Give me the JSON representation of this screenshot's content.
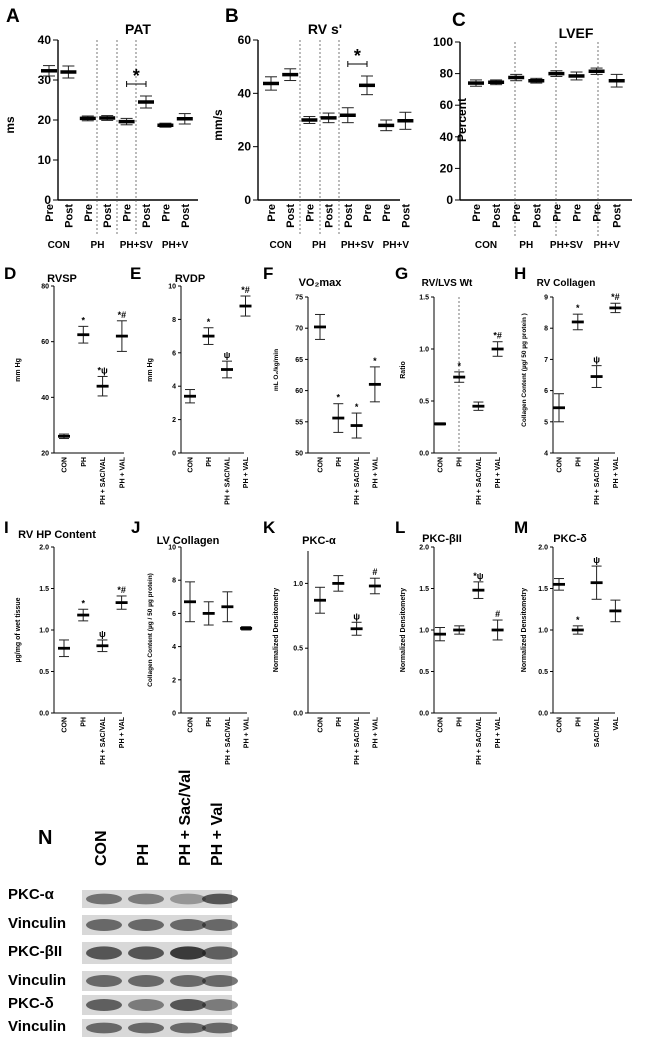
{
  "chart_data": [
    {
      "panel": "A",
      "type": "scatter",
      "title": "PAT",
      "ylabel": "ms",
      "ylim": [
        0,
        40
      ],
      "yticks": [
        0,
        10,
        20,
        30,
        40
      ],
      "group_labels": [
        "CON",
        "PH",
        "PH+SV",
        "PH+V"
      ],
      "categories": [
        "Pre",
        "Post",
        "Pre",
        "Post",
        "Pre",
        "Post",
        "Pre",
        "Post"
      ],
      "values": [
        32.3,
        32.0,
        20.4,
        20.5,
        19.6,
        24.5,
        18.7,
        20.3
      ],
      "errors": [
        1.3,
        1.5,
        0.6,
        0.6,
        0.8,
        1.5,
        0.5,
        1.3
      ],
      "annotations": [
        {
          "bracket": [
            4,
            5
          ],
          "text": "*"
        }
      ]
    },
    {
      "panel": "B",
      "type": "scatter",
      "title": "RV s'",
      "ylabel": "mm/s",
      "ylim": [
        0,
        60
      ],
      "yticks": [
        0,
        20,
        40,
        60
      ],
      "group_labels": [
        "CON",
        "PH",
        "PH+SV",
        "PH+V"
      ],
      "categories": [
        "Pre",
        "Post",
        "Pre",
        "Post",
        "Post",
        "Pre",
        "Pre",
        "Post"
      ],
      "values": [
        43.7,
        47.0,
        30.0,
        30.8,
        31.8,
        43.0,
        28.0,
        29.7
      ],
      "errors": [
        2.5,
        2.2,
        1.3,
        1.8,
        2.8,
        3.5,
        2.0,
        3.2
      ],
      "annotations": [
        {
          "bracket": [
            4,
            5
          ],
          "text": "*"
        }
      ]
    },
    {
      "panel": "C",
      "type": "scatter",
      "title": "LVEF",
      "ylabel": "Percent",
      "ylim": [
        0,
        100
      ],
      "yticks": [
        0,
        20,
        40,
        60,
        80,
        100
      ],
      "group_labels": [
        "CON",
        "PH",
        "PH+SV",
        "PH+V"
      ],
      "categories": [
        "Pre",
        "Post",
        "Pre",
        "Post",
        "Pre",
        "Pre",
        "Pre",
        "Post"
      ],
      "values": [
        74,
        74.5,
        77.5,
        75.5,
        80,
        78.5,
        81.5,
        75.5
      ],
      "errors": [
        2,
        1.5,
        2,
        1.5,
        1.8,
        2.5,
        2,
        4
      ],
      "annotations": []
    },
    {
      "panel": "D",
      "type": "scatter",
      "title": "RVSP",
      "ylabel": "mm Hg",
      "ylim": [
        20,
        80
      ],
      "yticks": [
        20,
        40,
        60,
        80
      ],
      "categories": [
        "CON",
        "PH",
        "PH + SAC/VAL",
        "PH + VAL"
      ],
      "values": [
        26,
        62.5,
        44,
        62
      ],
      "errors": [
        0.8,
        3,
        3.5,
        5.5
      ],
      "marks": [
        "",
        "*",
        "*ψ",
        "*#"
      ]
    },
    {
      "panel": "E",
      "type": "scatter",
      "title": "RVDP",
      "ylabel": "mm Hg",
      "ylim": [
        0,
        10
      ],
      "yticks": [
        0,
        2,
        4,
        6,
        8,
        10
      ],
      "categories": [
        "CON",
        "PH",
        "PH + SAC/VAL",
        "PH + VAL"
      ],
      "values": [
        3.4,
        7.0,
        5.0,
        8.8
      ],
      "errors": [
        0.4,
        0.5,
        0.5,
        0.6
      ],
      "marks": [
        "",
        "*",
        "ψ",
        "*#"
      ]
    },
    {
      "panel": "F",
      "type": "scatter",
      "title": "VO₂max",
      "ylabel": "mL O₂/kg/min",
      "ylim": [
        50,
        75
      ],
      "yticks": [
        50,
        55,
        60,
        65,
        70,
        75
      ],
      "categories": [
        "CON",
        "PH",
        "PH + SAC/VAL",
        "PH + VAL"
      ],
      "values": [
        70.2,
        55.6,
        54.4,
        61.0
      ],
      "errors": [
        2.0,
        2.3,
        2.0,
        2.8
      ],
      "marks": [
        "",
        "*",
        "*",
        "*"
      ]
    },
    {
      "panel": "G",
      "type": "scatter",
      "title": "RV/LVS Wt",
      "ylabel": "Ratio",
      "ylim": [
        0,
        1.5
      ],
      "yticks": [
        0.0,
        0.5,
        1.0,
        1.5
      ],
      "categories": [
        "CON",
        "PH",
        "PH + SAC/VAL",
        "PH + VAL"
      ],
      "values": [
        0.28,
        0.73,
        0.45,
        1.0
      ],
      "errors": [
        0.01,
        0.05,
        0.04,
        0.07
      ],
      "marks": [
        "",
        "*",
        "",
        "*#"
      ]
    },
    {
      "panel": "H",
      "type": "scatter",
      "title": "RV Collagen",
      "ylabel": "Collagen Content (µg/ 50 µg protein )",
      "ylim": [
        4,
        9
      ],
      "yticks": [
        4,
        5,
        6,
        7,
        8,
        9
      ],
      "categories": [
        "CON",
        "PH",
        "PH + SAC/VAL",
        "PH + VAL"
      ],
      "values": [
        5.45,
        8.2,
        6.45,
        8.65
      ],
      "errors": [
        0.45,
        0.25,
        0.35,
        0.15
      ],
      "marks": [
        "",
        "*",
        "ψ",
        "*#"
      ]
    },
    {
      "panel": "I",
      "type": "scatter",
      "title": "RV HP Content",
      "ylabel": "µg/mg of wet tissue",
      "ylim": [
        0,
        2
      ],
      "yticks": [
        0.0,
        0.5,
        1.0,
        1.5,
        2.0
      ],
      "categories": [
        "CON",
        "PH",
        "PH + SAC/VAL",
        "PH + VAL"
      ],
      "values": [
        0.78,
        1.18,
        0.81,
        1.33
      ],
      "errors": [
        0.1,
        0.07,
        0.07,
        0.08
      ],
      "marks": [
        "",
        "*",
        "ψ",
        "*#"
      ]
    },
    {
      "panel": "J",
      "type": "scatter",
      "title": "LV Collagen",
      "ylabel": "Collagen Content (µg / 50 µg protein)",
      "ylim": [
        0,
        10
      ],
      "yticks": [
        0,
        2,
        4,
        6,
        8,
        10
      ],
      "categories": [
        "CON",
        "PH",
        "PH + SAC/VAL",
        "PH + VAL"
      ],
      "values": [
        6.7,
        6.0,
        6.4,
        5.1
      ],
      "errors": [
        1.2,
        0.7,
        0.9,
        0.1
      ],
      "marks": [
        "",
        "",
        "",
        ""
      ]
    },
    {
      "panel": "K",
      "type": "scatter",
      "title": "PKC-α",
      "ylabel": "Normalized Densitometry",
      "ylim": [
        0,
        1.25
      ],
      "yticks": [
        0.0,
        0.5,
        1.0
      ],
      "categories": [
        "CON",
        "PH",
        "PH + SAC/VAL",
        "PH + VAL"
      ],
      "values": [
        0.87,
        1.0,
        0.65,
        0.98
      ],
      "errors": [
        0.1,
        0.06,
        0.05,
        0.06
      ],
      "marks": [
        "",
        "",
        "ψ",
        "#"
      ]
    },
    {
      "panel": "L",
      "type": "scatter",
      "title": "PKC-βII",
      "ylabel": "Normalized Densitometry",
      "ylim": [
        0,
        2
      ],
      "yticks": [
        0.0,
        0.5,
        1.0,
        1.5,
        2.0
      ],
      "categories": [
        "CON",
        "PH",
        "PH + SAC/VAL",
        "PH + VAL"
      ],
      "values": [
        0.95,
        1.0,
        1.48,
        1.0
      ],
      "errors": [
        0.08,
        0.05,
        0.1,
        0.12
      ],
      "marks": [
        "",
        "",
        "*ψ",
        "#"
      ]
    },
    {
      "panel": "M",
      "type": "scatter",
      "title": "PKC-δ",
      "ylabel": "Normalized Densitometry",
      "ylim": [
        0,
        2
      ],
      "yticks": [
        0.0,
        0.5,
        1.0,
        1.5,
        2.0
      ],
      "categories": [
        "CON",
        "PH",
        "SAC/VAL",
        "VAL"
      ],
      "values": [
        1.55,
        1.0,
        1.57,
        1.23
      ],
      "errors": [
        0.07,
        0.05,
        0.2,
        0.13
      ],
      "marks": [
        "",
        "*",
        "ψ",
        ""
      ]
    }
  ],
  "blot": {
    "panel": "N",
    "lanes": [
      "CON",
      "PH",
      "PH + Sac/Val",
      "PH + Val"
    ],
    "rows": [
      "PKC-α",
      "Vinculin",
      "PKC-βII",
      "Vinculin",
      "PKC-δ",
      "Vinculin"
    ]
  }
}
